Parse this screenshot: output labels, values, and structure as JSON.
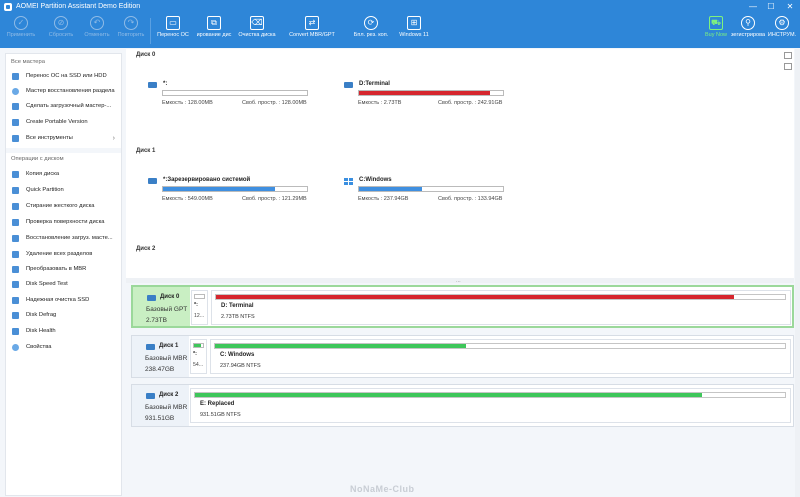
{
  "window": {
    "title": "AOMEI Partition Assistant Demo Edition",
    "controls": [
      "—",
      "☐",
      "✕"
    ]
  },
  "toolbar": {
    "left": [
      {
        "label": "Применить",
        "icon": "check-icon",
        "disabled": true
      },
      {
        "label": "Сбросить",
        "icon": "cancel-icon",
        "disabled": true
      },
      {
        "label": "Отменить",
        "icon": "undo-icon",
        "disabled": true
      },
      {
        "label": "Повторить",
        "icon": "redo-icon",
        "disabled": true
      }
    ],
    "tools": [
      {
        "label": "Перенос ОС",
        "icon": "migrate-os-icon"
      },
      {
        "label": "ирование дис",
        "icon": "clone-disk-icon"
      },
      {
        "label": "Очистка диска",
        "icon": "wipe-disk-icon"
      },
      {
        "label": "Convert MBR/GPT",
        "icon": "convert-icon"
      },
      {
        "label": "Бпл. рез. коп.",
        "icon": "backup-icon"
      },
      {
        "label": "Windows 11",
        "icon": "windows11-icon"
      }
    ],
    "right": [
      {
        "label": "Buy Now",
        "icon": "cart-icon"
      },
      {
        "label": "зегистрирова",
        "icon": "search-key-icon"
      },
      {
        "label": "ИНСТРУМ.",
        "icon": "tools-icon"
      }
    ]
  },
  "sidebar": {
    "wizards_title": "Все мастера",
    "wizards": [
      "Перенос ОС на SSD или HDD",
      "Мастер восстановления раздела",
      "Сделать загрузочный мастер-...",
      "Create Portable Version",
      "Все инструменты"
    ],
    "ops_title": "Операции с диском",
    "ops": [
      "Копия диска",
      "Quick Partition",
      "Стирание жесткого диска",
      "Проверка поверхности диска",
      "Восстановление загруз. масте...",
      "Удаление всех разделов",
      "Преобразовать в MBR",
      "Disk Speed Test",
      "Надежная очистка SSD",
      "Disk Defrag",
      "Disk Health",
      "Свойства"
    ]
  },
  "upper": {
    "disks": [
      {
        "label": "Диск 0",
        "partitions": [
          {
            "name": "*:",
            "cap": "Емкость : 128.00MB",
            "free": "Своб. простр. : 128.00MB",
            "used": 0.0,
            "color": "#3f8fe0",
            "icon": "drive-icon"
          },
          {
            "name": "D:Terminal",
            "cap": "Емкость : 2.73TB",
            "free": "Своб. простр. : 242.91GB",
            "used": 0.91,
            "color": "#d6262e",
            "icon": "drive-icon"
          }
        ]
      },
      {
        "label": "Диск 1",
        "partitions": [
          {
            "name": "*:Зарезервировано системой",
            "cap": "Емкость : 549.00MB",
            "free": "Своб. простр. : 121.29MB",
            "used": 0.78,
            "color": "#3f8fe0",
            "icon": "drive-icon"
          },
          {
            "name": "C:Windows",
            "cap": "Емкость : 237.94GB",
            "free": "Своб. простр. : 133.94GB",
            "used": 0.44,
            "color": "#3f8fe0",
            "icon": "windows-icon"
          }
        ]
      },
      {
        "label": "Диск 2",
        "partitions": []
      }
    ]
  },
  "lower": {
    "disks": [
      {
        "name": "Диск 0",
        "type": "Базовый GPT",
        "size": "2.73TB",
        "small": {
          "label": "*:",
          "size": "12...",
          "used": 0.0,
          "color": "#3f8fe0"
        },
        "big": {
          "label": "D: Terminal",
          "info": "2.73TB NTFS",
          "used": 0.91,
          "color": "#d6262e"
        }
      },
      {
        "name": "Диск 1",
        "type": "Базовый MBR",
        "size": "238.47GB",
        "small": {
          "label": "*:",
          "size": "54...",
          "used": 0.78,
          "color": "#3ec65a"
        },
        "big": {
          "label": "C: Windows",
          "info": "237.94GB NTFS",
          "used": 0.44,
          "color": "#3ec65a"
        }
      },
      {
        "name": "Диск 2",
        "type": "Базовый MBR",
        "size": "931.51GB",
        "big": {
          "label": "E: Replaced",
          "info": "931.51GB NTFS",
          "used": 0.86,
          "color": "#3ec65a"
        }
      }
    ]
  },
  "watermark": "NoNaMe-Club"
}
